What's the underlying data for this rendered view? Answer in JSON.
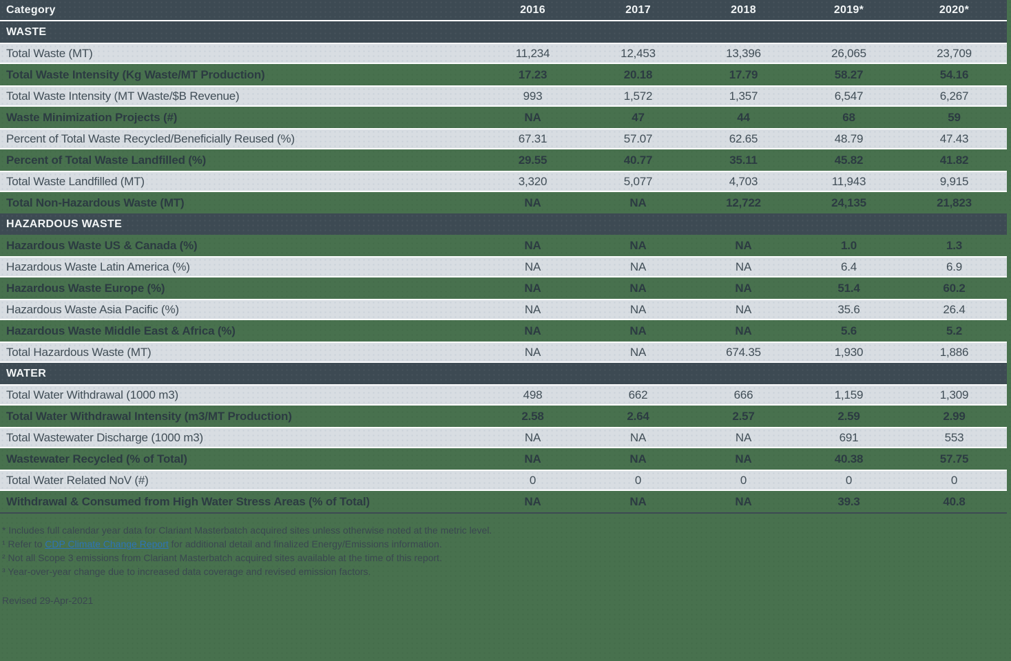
{
  "chart_data": {
    "type": "table",
    "columns": [
      "Category",
      "2016",
      "2017",
      "2018",
      "2019*",
      "2020*"
    ],
    "sections": [
      {
        "title": "WASTE",
        "rows": [
          {
            "label": "Total Waste (MT)",
            "values": [
              "11,234",
              "12,453",
              "13,396",
              "26,065",
              "23,709"
            ],
            "tone": "gray"
          },
          {
            "label": "Total Waste Intensity (Kg Waste/MT Production)",
            "values": [
              "17.23",
              "20.18",
              "17.79",
              "58.27",
              "54.16"
            ],
            "tone": "green"
          },
          {
            "label": "Total Waste Intensity (MT Waste/$B Revenue)",
            "values": [
              "993",
              "1,572",
              "1,357",
              "6,547",
              "6,267"
            ],
            "tone": "gray"
          },
          {
            "label": "Waste Minimization Projects (#)",
            "values": [
              "NA",
              "47",
              "44",
              "68",
              "59"
            ],
            "tone": "green"
          },
          {
            "label": "Percent of Total Waste Recycled/Beneficially Reused (%)",
            "values": [
              "67.31",
              "57.07",
              "62.65",
              "48.79",
              "47.43"
            ],
            "tone": "gray"
          },
          {
            "label": "Percent of Total Waste Landfilled (%)",
            "values": [
              "29.55",
              "40.77",
              "35.11",
              "45.82",
              "41.82"
            ],
            "tone": "green"
          },
          {
            "label": "Total Waste Landfilled (MT)",
            "values": [
              "3,320",
              "5,077",
              "4,703",
              "11,943",
              "9,915"
            ],
            "tone": "gray"
          },
          {
            "label": "Total Non-Hazardous Waste (MT)",
            "values": [
              "NA",
              "NA",
              "12,722",
              "24,135",
              "21,823"
            ],
            "tone": "green"
          }
        ]
      },
      {
        "title": "HAZARDOUS WASTE",
        "rows": [
          {
            "label": "Hazardous Waste US & Canada (%)",
            "values": [
              "NA",
              "NA",
              "NA",
              "1.0",
              "1.3"
            ],
            "tone": "green"
          },
          {
            "label": "Hazardous Waste Latin America (%)",
            "values": [
              "NA",
              "NA",
              "NA",
              "6.4",
              "6.9"
            ],
            "tone": "gray"
          },
          {
            "label": "Hazardous Waste Europe (%)",
            "values": [
              "NA",
              "NA",
              "NA",
              "51.4",
              "60.2"
            ],
            "tone": "green"
          },
          {
            "label": "Hazardous Waste Asia Pacific (%)",
            "values": [
              "NA",
              "NA",
              "NA",
              "35.6",
              "26.4"
            ],
            "tone": "gray"
          },
          {
            "label": "Hazardous Waste Middle East & Africa (%)",
            "values": [
              "NA",
              "NA",
              "NA",
              "5.6",
              "5.2"
            ],
            "tone": "green"
          },
          {
            "label": "Total Hazardous Waste (MT)",
            "values": [
              "NA",
              "NA",
              "674.35",
              "1,930",
              "1,886"
            ],
            "tone": "gray"
          }
        ]
      },
      {
        "title": "WATER",
        "rows": [
          {
            "label": "Total Water Withdrawal (1000 m3)",
            "values": [
              "498",
              "662",
              "666",
              "1,159",
              "1,309"
            ],
            "tone": "gray"
          },
          {
            "label": "Total Water Withdrawal Intensity (m3/MT Production)",
            "values": [
              "2.58",
              "2.64",
              "2.57",
              "2.59",
              "2.99"
            ],
            "tone": "green"
          },
          {
            "label": "Total Wastewater Discharge (1000 m3)",
            "values": [
              "NA",
              "NA",
              "NA",
              "691",
              "553"
            ],
            "tone": "gray"
          },
          {
            "label": "Wastewater Recycled (% of Total)",
            "values": [
              "NA",
              "NA",
              "NA",
              "40.38",
              "57.75"
            ],
            "tone": "green"
          },
          {
            "label": "Total Water Related NoV (#)",
            "values": [
              "0",
              "0",
              "0",
              "0",
              "0"
            ],
            "tone": "gray"
          },
          {
            "label": "Withdrawal & Consumed from High Water Stress Areas (% of Total)",
            "values": [
              "NA",
              "NA",
              "NA",
              "39.3",
              "40.8"
            ],
            "tone": "green"
          }
        ]
      }
    ]
  },
  "footnotes": [
    {
      "text": "* Includes full calendar year data for Clariant Masterbatch acquired sites unless otherwise noted at the metric level.",
      "link": "",
      "post": ""
    },
    {
      "text": "¹ Refer to ",
      "link": "CDP Climate Change Report",
      "post": " for additional detail and finalized Energy/Emissions information."
    },
    {
      "text": "² Not all Scope 3 emissions from Clariant Masterbatch acquired sites available at the time of this report.",
      "link": "",
      "post": ""
    },
    {
      "text": "³ Year-over-year change due to increased data coverage and revised emission factors.",
      "link": "",
      "post": ""
    }
  ],
  "revised": "Revised 29-Apr-2021",
  "colors": {
    "background_green": "#48714e",
    "header_slate": "#3d4a53",
    "row_gray": "#d8dde2",
    "gray_row_text": "#414e57",
    "green_row_text": "#2c3b42",
    "header_text": "#f2f5f6",
    "separator_white": "#fcfdfe",
    "link_blue": "#2e74b5"
  }
}
